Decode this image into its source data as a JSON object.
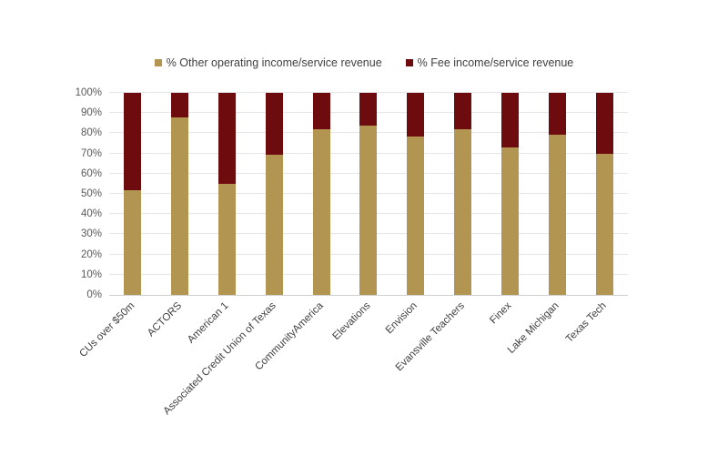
{
  "chart_data": {
    "type": "bar",
    "stacked": true,
    "orientation": "vertical",
    "title": "",
    "xlabel": "",
    "ylabel": "",
    "ylim": [
      0,
      100
    ],
    "ytick_step": 10,
    "ytick_labels": [
      "0%",
      "10%",
      "20%",
      "30%",
      "40%",
      "50%",
      "60%",
      "70%",
      "80%",
      "90%",
      "100%"
    ],
    "grid": true,
    "legend_position": "top",
    "categories": [
      "CUs over $50m",
      "ACTORS",
      "American 1",
      "Associated Credit Union of Texas",
      "CommunityAmerica",
      "Elevations",
      "Envision",
      "Evansville Teachers",
      "Finex",
      "Lake Michigan",
      "Texas Tech"
    ],
    "series": [
      {
        "name": "% Other operating income/service revenue",
        "color": "#B39552",
        "values": [
          52,
          88,
          55,
          69.5,
          82,
          84,
          78.5,
          82,
          73,
          79.5,
          70
        ]
      },
      {
        "name": "% Fee income/service revenue",
        "color": "#6E0B0E",
        "values": [
          48,
          12,
          45,
          30.5,
          18,
          16,
          21.5,
          18,
          27,
          20.5,
          30
        ]
      }
    ]
  },
  "colors": {
    "background": "#ffffff",
    "gridline": "#e6e6e6",
    "axis_line": "#d0d0d0",
    "y_tick_text": "#595959",
    "x_label_text": "#3f3f3f",
    "legend_text": "#404040"
  }
}
